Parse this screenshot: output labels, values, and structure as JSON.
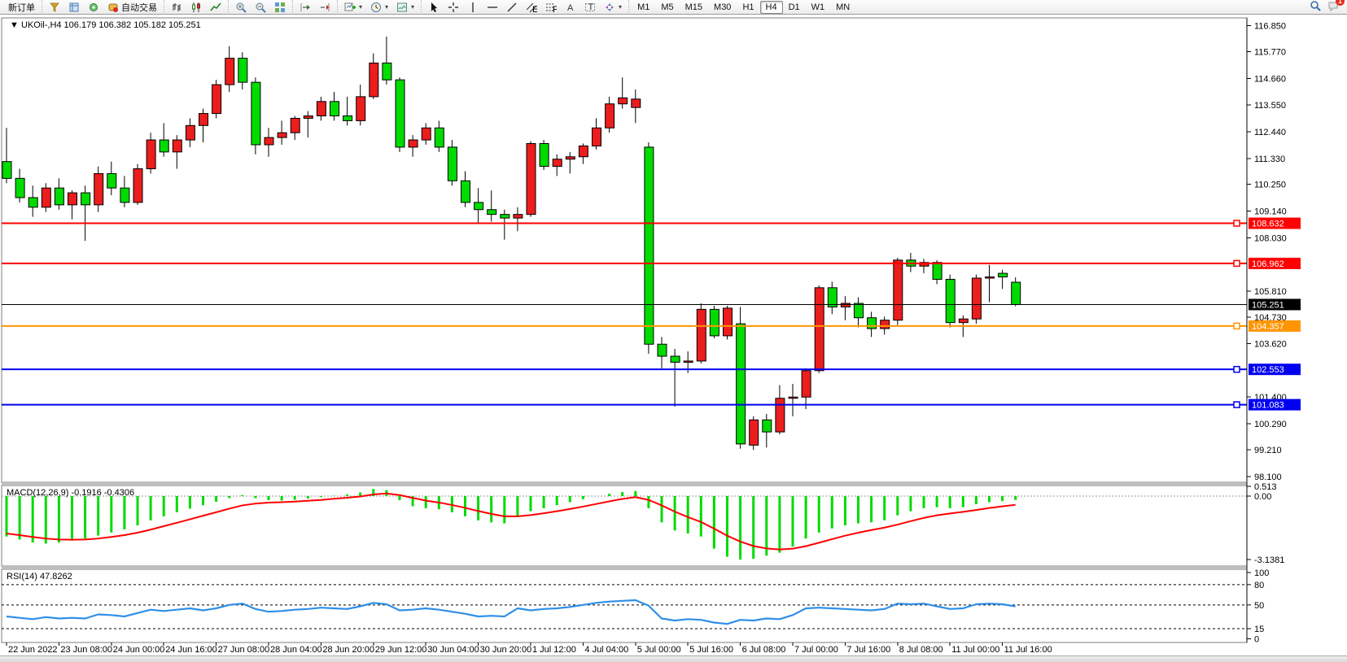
{
  "toolbar": {
    "groups": [
      {
        "items": [
          {
            "name": "new-order-button",
            "label": "新订单",
            "icon": null,
            "interactable": true
          }
        ]
      },
      {
        "items": [
          {
            "name": "market-watch-button",
            "icon": "market-watch",
            "interactable": true
          },
          {
            "name": "data-window-button",
            "icon": "data-window",
            "interactable": true
          },
          {
            "name": "navigator-button",
            "icon": "navigator",
            "interactable": true
          },
          {
            "name": "auto-trading-button",
            "label": "自动交易",
            "icon": "auto-trading",
            "interactable": true
          }
        ]
      },
      {
        "items": [
          {
            "name": "bar-chart-button",
            "icon": "bar-chart",
            "interactable": true
          },
          {
            "name": "candlestick-chart-button",
            "icon": "candle-chart",
            "interactable": true
          },
          {
            "name": "line-chart-button",
            "icon": "line-chart",
            "interactable": true
          }
        ]
      },
      {
        "items": [
          {
            "name": "zoom-in-button",
            "icon": "zoom-in",
            "interactable": true
          },
          {
            "name": "zoom-out-button",
            "icon": "zoom-out",
            "interactable": true
          },
          {
            "name": "tile-windows-button",
            "icon": "tile-windows",
            "interactable": true
          }
        ]
      },
      {
        "items": [
          {
            "name": "auto-scroll-button",
            "icon": "auto-scroll",
            "interactable": true
          },
          {
            "name": "chart-shift-button",
            "icon": "chart-shift",
            "interactable": true
          }
        ]
      },
      {
        "items": [
          {
            "name": "add-indicator-button",
            "icon": "add-chart",
            "caret": true,
            "interactable": true
          },
          {
            "name": "periods-button",
            "icon": "period-clock",
            "caret": true,
            "interactable": true
          },
          {
            "name": "template-button",
            "icon": "template",
            "caret": true,
            "interactable": true
          }
        ]
      },
      {
        "items": [
          {
            "name": "cursor-button",
            "icon": "cursor",
            "interactable": true
          },
          {
            "name": "crosshair-button",
            "icon": "crosshair",
            "interactable": true
          },
          {
            "name": "vertical-line-button",
            "icon": "v-line",
            "interactable": true
          },
          {
            "name": "horizontal-line-button",
            "icon": "h-line",
            "interactable": true
          },
          {
            "name": "trendline-button",
            "icon": "trend-line",
            "interactable": true
          },
          {
            "name": "channel-button",
            "icon": "channel",
            "interactable": true
          },
          {
            "name": "fibonacci-button",
            "icon": "fibonacci",
            "interactable": true
          },
          {
            "name": "text-button",
            "icon": "text",
            "interactable": true
          },
          {
            "name": "text-label-button",
            "icon": "text-label",
            "interactable": true
          },
          {
            "name": "arrows-button",
            "icon": "arrows-tool",
            "caret": true,
            "interactable": true
          }
        ]
      }
    ],
    "timeframes": [
      "M1",
      "M5",
      "M15",
      "M30",
      "H1",
      "H4",
      "D1",
      "W1",
      "MN"
    ],
    "active_timeframe": "H4",
    "right_icons": [
      {
        "name": "search-icon",
        "icon": "search",
        "interactable": true
      },
      {
        "name": "chat-icon",
        "icon": "chat",
        "badge": "1",
        "interactable": true
      }
    ]
  },
  "chart_header": {
    "symbol_title": "UKOil-,H4",
    "ohlc_values": "106.179 106.382 105.182 105.251"
  },
  "indicators": {
    "macd_label": "MACD(12,26,9)",
    "macd_values": "-0.1916 -0.4306",
    "macd_scale": [
      {
        "text": "0.513",
        "v": 0.513
      },
      {
        "text": "0.00",
        "v": 0
      },
      {
        "text": "-3.1381",
        "v": -3.1381
      }
    ],
    "rsi_label": "RSI(14)",
    "rsi_value": "47.8262",
    "rsi_scale": [
      {
        "text": "100",
        "v": 100
      },
      {
        "text": "80",
        "v": 80
      },
      {
        "text": "50",
        "v": 50
      },
      {
        "text": "15",
        "v": 15
      },
      {
        "text": "0",
        "v": 0
      }
    ],
    "rsi_levels": [
      80,
      50,
      15
    ]
  },
  "price_axis_ticks": [
    "116.850",
    "115.770",
    "114.660",
    "113.550",
    "112.440",
    "111.330",
    "110.250",
    "109.140",
    "108.030",
    "105.810",
    "104.730",
    "103.620",
    "101.400",
    "100.290",
    "99.210",
    "98.100"
  ],
  "hlines": [
    {
      "name": "resistance-line-1",
      "price": 108.632,
      "label": "108.632",
      "color": "#FE0000",
      "width": 2,
      "marker": true
    },
    {
      "name": "resistance-line-2",
      "price": 106.962,
      "label": "106.962",
      "color": "#FE0000",
      "width": 2,
      "marker": true
    },
    {
      "name": "current-price-line",
      "price": 105.251,
      "label": "105.251",
      "color": "#000000",
      "width": 1,
      "marker": false
    },
    {
      "name": "pivot-line",
      "price": 104.357,
      "label": "104.357",
      "color": "#FF9500",
      "width": 2,
      "marker": true
    },
    {
      "name": "support-line-1",
      "price": 102.553,
      "label": "102.553",
      "color": "#0000F0",
      "width": 2,
      "marker": true
    },
    {
      "name": "support-line-2",
      "price": 101.083,
      "label": "101.083",
      "color": "#0000F0",
      "width": 2,
      "marker": true
    }
  ],
  "colors": {
    "bull_candle": "#EB1D1D",
    "bear_candle": "#00DB00",
    "candle_outline": "#000000",
    "macd_histogram": "#00DB00",
    "macd_signal": "#FE0000",
    "rsi_line": "#2E8FE8",
    "panel_border": "#7c7c7c",
    "axis_text": "#000000"
  },
  "chart_data": {
    "type": "candlestick",
    "symbol": "UKOil-",
    "timeframe": "H4",
    "price_range_top": 116.85,
    "price_range_bottom": 98.1,
    "candles_ohlc": [
      [
        111.2,
        112.6,
        110.3,
        110.5
      ],
      [
        110.5,
        110.9,
        109.5,
        109.7
      ],
      [
        109.7,
        110.2,
        108.9,
        109.3
      ],
      [
        109.3,
        110.3,
        109.1,
        110.1
      ],
      [
        110.1,
        110.5,
        109.2,
        109.4
      ],
      [
        109.4,
        110.0,
        108.8,
        109.9
      ],
      [
        109.9,
        110.2,
        107.9,
        109.4
      ],
      [
        109.4,
        111.0,
        109.1,
        110.7
      ],
      [
        110.7,
        111.2,
        109.8,
        110.1
      ],
      [
        110.1,
        110.6,
        109.3,
        109.5
      ],
      [
        109.5,
        111.1,
        109.4,
        110.9
      ],
      [
        110.9,
        112.4,
        110.7,
        112.1
      ],
      [
        112.1,
        112.8,
        111.4,
        111.6
      ],
      [
        111.6,
        112.3,
        110.9,
        112.1
      ],
      [
        112.1,
        113.0,
        111.8,
        112.7
      ],
      [
        112.7,
        113.4,
        112.0,
        113.2
      ],
      [
        113.2,
        114.6,
        113.0,
        114.4
      ],
      [
        114.4,
        116.0,
        114.1,
        115.5
      ],
      [
        115.5,
        115.75,
        114.2,
        114.5
      ],
      [
        114.5,
        114.7,
        111.5,
        111.9
      ],
      [
        111.9,
        112.6,
        111.4,
        112.2
      ],
      [
        112.2,
        112.9,
        111.9,
        112.4
      ],
      [
        112.4,
        113.1,
        112.1,
        113.0
      ],
      [
        113.0,
        113.3,
        112.2,
        113.1
      ],
      [
        113.1,
        113.9,
        112.9,
        113.7
      ],
      [
        113.7,
        114.1,
        112.9,
        113.1
      ],
      [
        113.1,
        113.9,
        112.7,
        112.9
      ],
      [
        112.9,
        114.4,
        112.7,
        113.9
      ],
      [
        113.9,
        115.7,
        113.8,
        115.3
      ],
      [
        115.3,
        116.4,
        114.4,
        114.6
      ],
      [
        114.6,
        114.7,
        111.6,
        111.8
      ],
      [
        111.8,
        112.3,
        111.4,
        112.1
      ],
      [
        112.1,
        112.8,
        111.9,
        112.6
      ],
      [
        112.6,
        112.9,
        111.6,
        111.8
      ],
      [
        111.8,
        112.1,
        110.2,
        110.4
      ],
      [
        110.4,
        110.8,
        109.3,
        109.5
      ],
      [
        109.5,
        110.1,
        108.6,
        109.2
      ],
      [
        109.2,
        110.0,
        108.7,
        109.0
      ],
      [
        109.0,
        109.2,
        107.95,
        108.85
      ],
      [
        108.85,
        109.3,
        108.3,
        109.0
      ],
      [
        109.0,
        112.05,
        108.9,
        111.95
      ],
      [
        111.95,
        112.1,
        110.85,
        111.0
      ],
      [
        111.0,
        111.5,
        110.6,
        111.3
      ],
      [
        111.3,
        111.6,
        110.7,
        111.4
      ],
      [
        111.4,
        111.95,
        111.1,
        111.85
      ],
      [
        111.85,
        113.0,
        111.7,
        112.6
      ],
      [
        112.6,
        113.9,
        112.4,
        113.6
      ],
      [
        113.6,
        114.7,
        113.4,
        113.85
      ],
      [
        113.45,
        114.2,
        112.8,
        113.8
      ],
      [
        111.8,
        112.0,
        103.2,
        103.6
      ],
      [
        103.6,
        103.9,
        102.6,
        103.1
      ],
      [
        103.1,
        103.4,
        101.0,
        102.85
      ],
      [
        102.85,
        103.3,
        102.4,
        102.9
      ],
      [
        102.9,
        105.3,
        102.8,
        105.05
      ],
      [
        105.05,
        105.2,
        103.85,
        103.95
      ],
      [
        103.95,
        105.2,
        103.8,
        105.1
      ],
      [
        104.45,
        105.15,
        99.25,
        99.45
      ],
      [
        99.4,
        100.6,
        99.2,
        100.45
      ],
      [
        100.45,
        100.7,
        99.3,
        99.95
      ],
      [
        99.95,
        101.9,
        99.85,
        101.35
      ],
      [
        101.35,
        101.95,
        100.6,
        101.4
      ],
      [
        101.4,
        102.6,
        100.9,
        102.5
      ],
      [
        102.5,
        106.05,
        102.4,
        105.95
      ],
      [
        105.95,
        106.2,
        104.85,
        105.15
      ],
      [
        105.15,
        105.6,
        104.6,
        105.3
      ],
      [
        105.3,
        105.55,
        104.3,
        104.7
      ],
      [
        104.7,
        104.95,
        103.9,
        104.25
      ],
      [
        104.25,
        104.75,
        104.0,
        104.6
      ],
      [
        104.6,
        107.2,
        104.4,
        107.1
      ],
      [
        107.1,
        107.4,
        106.6,
        106.85
      ],
      [
        106.85,
        107.15,
        106.55,
        107.0
      ],
      [
        107.0,
        107.1,
        106.1,
        106.3
      ],
      [
        106.3,
        106.5,
        104.3,
        104.5
      ],
      [
        104.5,
        104.8,
        103.9,
        104.65
      ],
      [
        104.65,
        106.5,
        104.45,
        106.35
      ],
      [
        106.35,
        106.9,
        105.35,
        106.4
      ],
      [
        106.55,
        106.7,
        105.9,
        106.4
      ],
      [
        106.179,
        106.382,
        105.182,
        105.251
      ]
    ],
    "macd": {
      "params": [
        12,
        26,
        9
      ],
      "current_main": -0.1916,
      "current_signal": -0.4306,
      "scale_max": 0.513,
      "scale_min": -3.1381,
      "histogram": [
        -2.0,
        -2.15,
        -2.3,
        -2.35,
        -2.3,
        -2.2,
        -2.1,
        -1.95,
        -1.8,
        -1.65,
        -1.45,
        -1.2,
        -1.0,
        -0.8,
        -0.62,
        -0.45,
        -0.28,
        -0.1,
        0.05,
        -0.1,
        -0.2,
        -0.22,
        -0.18,
        -0.12,
        -0.05,
        0.02,
        0.08,
        0.18,
        0.35,
        0.3,
        -0.2,
        -0.5,
        -0.6,
        -0.65,
        -0.8,
        -1.0,
        -1.2,
        -1.3,
        -1.35,
        -1.0,
        -0.75,
        -0.6,
        -0.45,
        -0.3,
        -0.15,
        0.0,
        0.12,
        0.2,
        0.25,
        -0.6,
        -1.3,
        -1.7,
        -1.85,
        -2.0,
        -2.6,
        -3.0,
        -3.14,
        -3.1,
        -2.95,
        -2.8,
        -2.5,
        -2.1,
        -1.8,
        -1.6,
        -1.45,
        -1.35,
        -1.3,
        -1.2,
        -0.95,
        -0.75,
        -0.6,
        -0.55,
        -0.6,
        -0.55,
        -0.4,
        -0.3,
        -0.25,
        -0.19
      ],
      "signal": [
        -1.85,
        -1.93,
        -2.02,
        -2.1,
        -2.15,
        -2.16,
        -2.15,
        -2.1,
        -2.02,
        -1.93,
        -1.81,
        -1.66,
        -1.49,
        -1.32,
        -1.15,
        -0.97,
        -0.8,
        -0.62,
        -0.46,
        -0.37,
        -0.32,
        -0.3,
        -0.27,
        -0.23,
        -0.19,
        -0.13,
        -0.08,
        -0.02,
        0.08,
        0.13,
        0.05,
        -0.09,
        -0.22,
        -0.32,
        -0.44,
        -0.58,
        -0.74,
        -0.88,
        -1.0,
        -1.0,
        -0.94,
        -0.85,
        -0.75,
        -0.64,
        -0.52,
        -0.39,
        -0.26,
        -0.14,
        -0.05,
        -0.19,
        -0.46,
        -0.77,
        -1.04,
        -1.28,
        -1.61,
        -1.96,
        -2.25,
        -2.47,
        -2.59,
        -2.64,
        -2.6,
        -2.48,
        -2.31,
        -2.13,
        -1.96,
        -1.81,
        -1.68,
        -1.56,
        -1.41,
        -1.24,
        -1.08,
        -0.95,
        -0.86,
        -0.78,
        -0.69,
        -0.59,
        -0.51,
        -0.43
      ]
    },
    "rsi": {
      "period": 14,
      "current": 47.8262,
      "values": [
        33,
        31,
        29,
        32,
        30,
        31,
        30,
        36,
        35,
        33,
        38,
        43,
        41,
        43,
        45,
        42,
        45,
        50,
        52,
        44,
        40,
        41,
        43,
        44,
        46,
        45,
        44,
        48,
        53,
        51,
        42,
        43,
        45,
        43,
        40,
        37,
        33,
        34,
        33,
        45,
        42,
        44,
        45,
        47,
        50,
        53,
        55,
        56,
        57,
        49,
        30,
        27,
        29,
        28,
        24,
        22,
        28,
        27,
        30,
        29,
        35,
        45,
        46,
        45,
        44,
        43,
        42,
        44,
        52,
        51,
        52,
        48,
        44,
        45,
        51,
        52,
        51,
        47.83
      ]
    },
    "time_labels": [
      {
        "label": "22 Jun 2022",
        "bar": 0
      },
      {
        "label": "23 Jun 08:00",
        "bar": 4
      },
      {
        "label": "24 Jun 00:00",
        "bar": 8
      },
      {
        "label": "24 Jun 16:00",
        "bar": 12
      },
      {
        "label": "27 Jun 08:00",
        "bar": 16
      },
      {
        "label": "28 Jun 04:00",
        "bar": 20
      },
      {
        "label": "28 Jun 20:00",
        "bar": 24
      },
      {
        "label": "29 Jun 12:00",
        "bar": 28
      },
      {
        "label": "30 Jun 04:00",
        "bar": 32
      },
      {
        "label": "30 Jun 20:00",
        "bar": 36
      },
      {
        "label": "1 Jul 12:00",
        "bar": 40
      },
      {
        "label": "4 Jul 04:00",
        "bar": 44
      },
      {
        "label": "5 Jul 00:00",
        "bar": 48
      },
      {
        "label": "5 Jul 16:00",
        "bar": 52
      },
      {
        "label": "6 Jul 08:00",
        "bar": 56
      },
      {
        "label": "7 Jul 00:00",
        "bar": 60
      },
      {
        "label": "7 Jul 16:00",
        "bar": 64
      },
      {
        "label": "8 Jul 08:00",
        "bar": 68
      },
      {
        "label": "11 Jul 00:00",
        "bar": 72
      },
      {
        "label": "11 Jul 16:00",
        "bar": 76
      }
    ]
  }
}
